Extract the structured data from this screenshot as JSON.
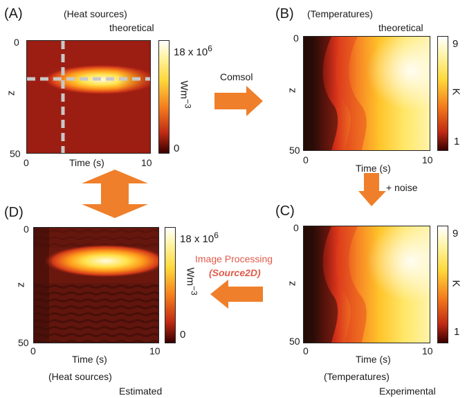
{
  "panels": {
    "A": {
      "letter": "(A)",
      "title": "(Heat sources)",
      "subtitle": "theoretical",
      "y_label": "z",
      "y_ticks": [
        "0",
        "50"
      ],
      "x_label": "Time (s)",
      "x_ticks": [
        "0",
        "10"
      ],
      "colorbar": {
        "top_label": "18 x 10",
        "exponent": "6",
        "bottom_label": "0",
        "unit": "Wm",
        "unit_exp": "−3"
      }
    },
    "B": {
      "letter": "(B)",
      "title": "(Temperatures)",
      "subtitle": "theoretical",
      "y_label": "z",
      "y_ticks": [
        "0",
        "50"
      ],
      "x_label": "Time (s)",
      "x_ticks": [
        "0",
        "10"
      ],
      "colorbar": {
        "top_label": "9",
        "bottom_label": "1",
        "unit": "K"
      }
    },
    "C": {
      "letter": "(C)",
      "title": "(Temperatures)",
      "subtitle": "Experimental",
      "y_label": "z",
      "y_ticks": [
        "0",
        "50"
      ],
      "x_label": "Time (s)",
      "x_ticks": [
        "0",
        "10"
      ],
      "colorbar": {
        "top_label": "9",
        "bottom_label": "1",
        "unit": "K"
      }
    },
    "D": {
      "letter": "(D)",
      "title": "(Heat sources)",
      "subtitle": "Estimated",
      "y_label": "z",
      "y_ticks": [
        "0",
        "50"
      ],
      "x_label": "Time (s)",
      "x_ticks": [
        "0",
        "10"
      ],
      "colorbar": {
        "top_label": "18 x 10",
        "exponent": "6",
        "bottom_label": "0",
        "unit": "Wm",
        "unit_exp": "−3"
      }
    }
  },
  "arrows": {
    "comsol": "Comsol",
    "noise": "+ noise",
    "image_processing_line1": "Image Processing",
    "image_processing_line2": "(Source2D)"
  },
  "colors": {
    "arrow_fill": "#ef7f2a",
    "image_processing_text": "#e05a4a",
    "crosshair": "#c8c8c8"
  }
}
